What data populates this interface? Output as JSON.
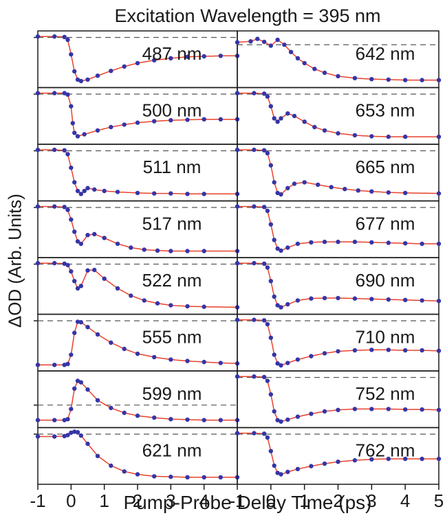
{
  "figure": {
    "title": "Excitation Wavelength = 395 nm",
    "xlabel": "Pump-Probe Delay Time (ps)",
    "ylabel": "ΔOD (Arb. Units)"
  },
  "colors": {
    "fit_line": "#e8412a",
    "data_points": "#3535a8",
    "frame": "#1a1a1a",
    "baseline": "#555555"
  },
  "chart_data": [
    {
      "type": "line",
      "label": "487 nm",
      "column": "left",
      "row": 0,
      "xlim": [
        -1,
        5
      ],
      "baseline": 0.95,
      "x": [
        -1,
        -0.5,
        -0.2,
        -0.1,
        0,
        0.1,
        0.2,
        0.3,
        0.5,
        0.8,
        1.2,
        1.6,
        2,
        2.5,
        3,
        3.5,
        4,
        4.5,
        5
      ],
      "y": [
        0.97,
        0.97,
        0.96,
        0.9,
        0.6,
        0.25,
        0.08,
        0.05,
        0.08,
        0.16,
        0.26,
        0.35,
        0.42,
        0.48,
        0.52,
        0.55,
        0.56,
        0.57,
        0.57
      ]
    },
    {
      "type": "line",
      "label": "500 nm",
      "column": "left",
      "row": 1,
      "xlim": [
        -1,
        5
      ],
      "baseline": 0.95,
      "x": [
        -1,
        -0.5,
        -0.2,
        -0.1,
        0,
        0.05,
        0.1,
        0.2,
        0.4,
        0.8,
        1.2,
        1.6,
        2,
        2.5,
        3,
        3.5,
        4,
        4.5,
        5
      ],
      "y": [
        0.97,
        0.97,
        0.97,
        0.94,
        0.7,
        0.35,
        0.15,
        0.08,
        0.12,
        0.2,
        0.27,
        0.32,
        0.36,
        0.39,
        0.41,
        0.42,
        0.43,
        0.43,
        0.43
      ]
    },
    {
      "type": "line",
      "label": "511 nm",
      "column": "left",
      "row": 2,
      "xlim": [
        -1,
        5
      ],
      "baseline": 0.95,
      "x": [
        -1,
        -0.5,
        -0.2,
        -0.1,
        0,
        0.1,
        0.2,
        0.3,
        0.4,
        0.5,
        0.7,
        1,
        1.4,
        2,
        2.5,
        3,
        3.5,
        4,
        5
      ],
      "y": [
        0.97,
        0.97,
        0.96,
        0.88,
        0.6,
        0.3,
        0.12,
        0.06,
        0.12,
        0.18,
        0.15,
        0.12,
        0.1,
        0.08,
        0.07,
        0.07,
        0.06,
        0.06,
        0.06
      ]
    },
    {
      "type": "line",
      "label": "517 nm",
      "column": "left",
      "row": 3,
      "xlim": [
        -1,
        5
      ],
      "baseline": 0.95,
      "x": [
        -1,
        -0.5,
        -0.2,
        -0.1,
        0,
        0.1,
        0.2,
        0.3,
        0.5,
        0.7,
        1,
        1.4,
        1.8,
        2.2,
        2.6,
        3,
        3.5,
        4,
        5
      ],
      "y": [
        0.97,
        0.97,
        0.96,
        0.9,
        0.7,
        0.45,
        0.25,
        0.2,
        0.38,
        0.4,
        0.32,
        0.2,
        0.12,
        0.08,
        0.06,
        0.05,
        0.05,
        0.05,
        0.05
      ]
    },
    {
      "type": "line",
      "label": "522 nm",
      "column": "left",
      "row": 4,
      "xlim": [
        -1,
        5
      ],
      "baseline": 0.95,
      "x": [
        -1,
        -0.5,
        -0.2,
        -0.1,
        0,
        0.1,
        0.2,
        0.3,
        0.5,
        0.7,
        1,
        1.4,
        1.8,
        2.2,
        2.6,
        3,
        3.5,
        4,
        5
      ],
      "y": [
        0.97,
        0.97,
        0.96,
        0.93,
        0.8,
        0.6,
        0.45,
        0.5,
        0.82,
        0.83,
        0.65,
        0.45,
        0.3,
        0.2,
        0.14,
        0.1,
        0.08,
        0.07,
        0.06
      ]
    },
    {
      "type": "line",
      "label": "555 nm",
      "column": "left",
      "row": 5,
      "xlim": [
        -1,
        5
      ],
      "baseline": 0.95,
      "x": [
        -1,
        -0.5,
        -0.2,
        -0.1,
        0,
        0.1,
        0.2,
        0.3,
        0.5,
        0.8,
        1.2,
        1.6,
        2,
        2.5,
        3,
        3.5,
        4,
        4.5,
        5
      ],
      "y": [
        0.04,
        0.04,
        0.04,
        0.06,
        0.25,
        0.7,
        0.93,
        0.92,
        0.82,
        0.67,
        0.5,
        0.37,
        0.27,
        0.2,
        0.15,
        0.12,
        0.1,
        0.08,
        0.07
      ]
    },
    {
      "type": "line",
      "label": "599 nm",
      "column": "left",
      "row": 6,
      "xlim": [
        -1,
        5
      ],
      "baseline": 0.38,
      "x": [
        -1,
        -0.5,
        -0.2,
        -0.1,
        0,
        0.1,
        0.2,
        0.3,
        0.5,
        0.8,
        1.2,
        1.6,
        2,
        2.5,
        3,
        3.5,
        4,
        4.5,
        5
      ],
      "y": [
        0.07,
        0.07,
        0.07,
        0.09,
        0.3,
        0.72,
        0.88,
        0.85,
        0.7,
        0.48,
        0.32,
        0.22,
        0.16,
        0.12,
        0.09,
        0.08,
        0.07,
        0.07,
        0.07
      ]
    },
    {
      "type": "line",
      "label": "621 nm",
      "column": "left",
      "row": 7,
      "xlim": [
        -1,
        5
      ],
      "baseline": 0.95,
      "x": [
        -1,
        -0.5,
        -0.2,
        -0.1,
        0,
        0.1,
        0.2,
        0.3,
        0.5,
        0.8,
        1.2,
        1.6,
        2,
        2.5,
        3,
        3.5,
        4,
        4.5,
        5
      ],
      "y": [
        0.9,
        0.9,
        0.91,
        0.93,
        0.98,
        1.0,
        0.99,
        0.92,
        0.75,
        0.5,
        0.3,
        0.18,
        0.12,
        0.08,
        0.07,
        0.06,
        0.06,
        0.06,
        0.06
      ]
    },
    {
      "type": "line",
      "label": "642 nm",
      "column": "right",
      "row": 0,
      "xlim": [
        -1,
        5
      ],
      "baseline": 0.8,
      "x": [
        -1,
        -0.6,
        -0.4,
        -0.2,
        0,
        0.2,
        0.4,
        0.6,
        0.8,
        1,
        1.3,
        1.6,
        2,
        2.5,
        3,
        3.5,
        4,
        4.5,
        5
      ],
      "y": [
        0.85,
        0.87,
        0.92,
        0.86,
        0.78,
        0.9,
        0.8,
        0.65,
        0.52,
        0.42,
        0.3,
        0.22,
        0.15,
        0.11,
        0.09,
        0.08,
        0.07,
        0.07,
        0.07
      ]
    },
    {
      "type": "line",
      "label": "653 nm",
      "column": "right",
      "row": 1,
      "xlim": [
        -1,
        5
      ],
      "baseline": 0.95,
      "x": [
        -1,
        -0.5,
        -0.2,
        -0.1,
        0,
        0.1,
        0.2,
        0.3,
        0.5,
        0.7,
        1,
        1.3,
        1.6,
        2,
        2.5,
        3,
        3.5,
        4,
        5
      ],
      "y": [
        0.97,
        0.97,
        0.96,
        0.9,
        0.7,
        0.45,
        0.38,
        0.45,
        0.55,
        0.5,
        0.38,
        0.27,
        0.2,
        0.14,
        0.1,
        0.08,
        0.07,
        0.07,
        0.07
      ]
    },
    {
      "type": "line",
      "label": "665 nm",
      "column": "right",
      "row": 2,
      "xlim": [
        -1,
        5
      ],
      "baseline": 0.95,
      "x": [
        -1,
        -0.5,
        -0.2,
        -0.1,
        0,
        0.1,
        0.2,
        0.3,
        0.5,
        0.7,
        1,
        1.4,
        1.8,
        2.2,
        2.6,
        3,
        3.5,
        4,
        5
      ],
      "y": [
        0.97,
        0.97,
        0.96,
        0.9,
        0.65,
        0.3,
        0.08,
        0.05,
        0.18,
        0.27,
        0.3,
        0.25,
        0.2,
        0.16,
        0.13,
        0.11,
        0.09,
        0.08,
        0.07
      ]
    },
    {
      "type": "line",
      "label": "677 nm",
      "column": "right",
      "row": 3,
      "xlim": [
        -1,
        5
      ],
      "baseline": 0.95,
      "x": [
        -1,
        -0.5,
        -0.2,
        -0.1,
        0,
        0.1,
        0.2,
        0.3,
        0.5,
        0.8,
        1.2,
        1.6,
        2,
        2.5,
        3,
        3.5,
        4,
        4.5,
        5
      ],
      "y": [
        0.97,
        0.97,
        0.96,
        0.88,
        0.6,
        0.28,
        0.1,
        0.06,
        0.12,
        0.2,
        0.23,
        0.24,
        0.24,
        0.24,
        0.23,
        0.22,
        0.21,
        0.2,
        0.2
      ]
    },
    {
      "type": "line",
      "label": "690 nm",
      "column": "right",
      "row": 4,
      "xlim": [
        -1,
        5
      ],
      "baseline": 0.95,
      "x": [
        -1,
        -0.5,
        -0.2,
        -0.1,
        0,
        0.1,
        0.2,
        0.3,
        0.5,
        0.8,
        1.2,
        1.6,
        2,
        2.5,
        3,
        3.5,
        4,
        4.5,
        5
      ],
      "y": [
        0.97,
        0.97,
        0.96,
        0.88,
        0.6,
        0.28,
        0.1,
        0.06,
        0.12,
        0.2,
        0.24,
        0.25,
        0.25,
        0.24,
        0.23,
        0.22,
        0.21,
        0.2,
        0.19
      ]
    },
    {
      "type": "line",
      "label": "710 nm",
      "column": "right",
      "row": 5,
      "xlim": [
        -1,
        5
      ],
      "baseline": 0.95,
      "x": [
        -1,
        -0.5,
        -0.2,
        -0.1,
        0,
        0.1,
        0.2,
        0.3,
        0.5,
        0.8,
        1.2,
        1.6,
        2,
        2.5,
        3,
        3.5,
        4,
        4.5,
        5
      ],
      "y": [
        0.97,
        0.97,
        0.96,
        0.88,
        0.6,
        0.25,
        0.07,
        0.03,
        0.08,
        0.15,
        0.22,
        0.28,
        0.32,
        0.34,
        0.35,
        0.35,
        0.34,
        0.34,
        0.33
      ]
    },
    {
      "type": "line",
      "label": "752 nm",
      "column": "right",
      "row": 6,
      "xlim": [
        -1,
        5
      ],
      "baseline": 0.95,
      "x": [
        -1,
        -0.5,
        -0.2,
        -0.1,
        0,
        0.1,
        0.2,
        0.3,
        0.5,
        0.8,
        1.2,
        1.6,
        2,
        2.5,
        3,
        3.5,
        4,
        4.5,
        5
      ],
      "y": [
        0.97,
        0.97,
        0.96,
        0.88,
        0.6,
        0.25,
        0.07,
        0.04,
        0.08,
        0.14,
        0.2,
        0.25,
        0.28,
        0.3,
        0.3,
        0.3,
        0.29,
        0.29,
        0.28
      ]
    },
    {
      "type": "line",
      "label": "762 nm",
      "column": "right",
      "row": 7,
      "xlim": [
        -1,
        5
      ],
      "baseline": 0.95,
      "x": [
        -1,
        -0.5,
        -0.2,
        -0.1,
        0,
        0.1,
        0.2,
        0.3,
        0.5,
        0.8,
        1.2,
        1.6,
        2,
        2.5,
        3,
        3.5,
        4,
        4.5,
        5
      ],
      "y": [
        0.97,
        0.97,
        0.96,
        0.88,
        0.6,
        0.3,
        0.15,
        0.12,
        0.17,
        0.23,
        0.29,
        0.34,
        0.38,
        0.41,
        0.43,
        0.44,
        0.44,
        0.44,
        0.44
      ]
    }
  ],
  "x_ticks": {
    "left": [
      "-1",
      "0",
      "1",
      "2",
      "3",
      "4"
    ],
    "right": [
      "-1",
      "0",
      "1",
      "2",
      "3",
      "4",
      "5"
    ]
  }
}
